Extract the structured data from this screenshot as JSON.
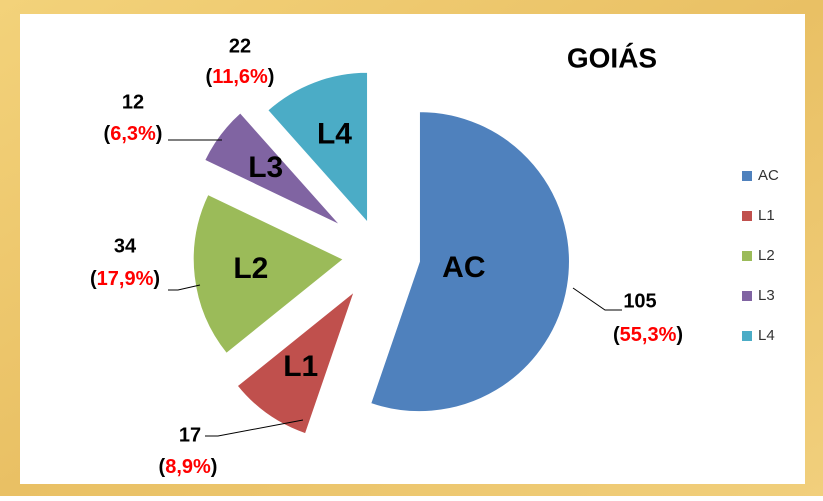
{
  "chart_data": {
    "type": "pie",
    "title": "GOIÁS",
    "categories": [
      "AC",
      "L1",
      "L2",
      "L3",
      "L4"
    ],
    "values": [
      105,
      17,
      34,
      12,
      22
    ],
    "percent_labels": [
      "(55,3%)",
      "(8,9%)",
      "(17,9%)",
      "(6,3%)",
      "(11,6%)"
    ],
    "colors": [
      "#4f81bd",
      "#c0504d",
      "#9bbb59",
      "#8064a2",
      "#4bacc6"
    ],
    "legend": "right"
  }
}
